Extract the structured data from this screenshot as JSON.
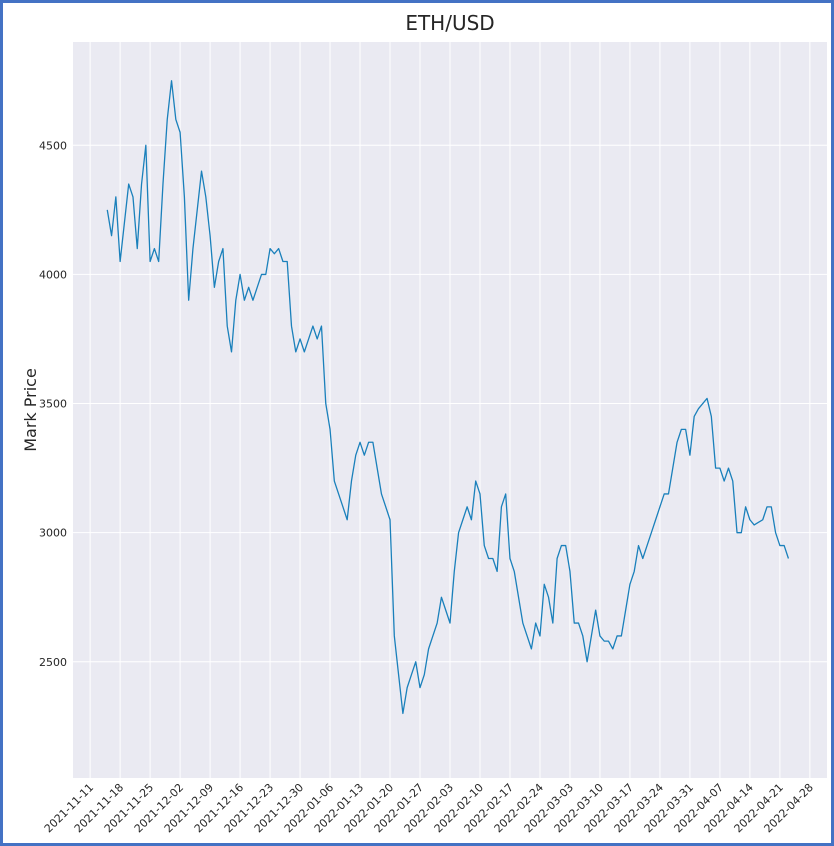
{
  "chart_data": {
    "type": "line",
    "title": "ETH/USD",
    "y_label": "Mark Price",
    "xlim": [
      "2021-11-07",
      "2022-05-02"
    ],
    "ylim": [
      2050,
      4900
    ],
    "xticks": [
      "2021-11-11",
      "2021-11-18",
      "2021-11-25",
      "2021-12-02",
      "2021-12-09",
      "2021-12-16",
      "2021-12-23",
      "2021-12-30",
      "2022-01-06",
      "2022-01-13",
      "2022-01-20",
      "2022-01-27",
      "2022-02-03",
      "2022-02-10",
      "2022-02-17",
      "2022-02-24",
      "2022-03-03",
      "2022-03-10",
      "2022-03-17",
      "2022-03-24",
      "2022-03-31",
      "2022-04-07",
      "2022-04-14",
      "2022-04-21",
      "2022-04-28"
    ],
    "yticks": [
      2500,
      3000,
      3500,
      4000,
      4500
    ],
    "grid": true,
    "x": [
      "2021-11-15",
      "2021-11-16",
      "2021-11-17",
      "2021-11-18",
      "2021-11-19",
      "2021-11-20",
      "2021-11-21",
      "2021-11-22",
      "2021-11-23",
      "2021-11-24",
      "2021-11-25",
      "2021-11-26",
      "2021-11-27",
      "2021-11-28",
      "2021-11-29",
      "2021-11-30",
      "2021-12-01",
      "2021-12-02",
      "2021-12-03",
      "2021-12-04",
      "2021-12-05",
      "2021-12-06",
      "2021-12-07",
      "2021-12-08",
      "2021-12-09",
      "2021-12-10",
      "2021-12-11",
      "2021-12-12",
      "2021-12-13",
      "2021-12-14",
      "2021-12-15",
      "2021-12-16",
      "2021-12-17",
      "2021-12-18",
      "2021-12-19",
      "2021-12-20",
      "2021-12-21",
      "2021-12-22",
      "2021-12-23",
      "2021-12-24",
      "2021-12-25",
      "2021-12-26",
      "2021-12-27",
      "2021-12-28",
      "2021-12-29",
      "2021-12-30",
      "2021-12-31",
      "2022-01-01",
      "2022-01-02",
      "2022-01-03",
      "2022-01-04",
      "2022-01-05",
      "2022-01-06",
      "2022-01-07",
      "2022-01-08",
      "2022-01-09",
      "2022-01-10",
      "2022-01-11",
      "2022-01-12",
      "2022-01-13",
      "2022-01-14",
      "2022-01-15",
      "2022-01-16",
      "2022-01-17",
      "2022-01-18",
      "2022-01-19",
      "2022-01-20",
      "2022-01-21",
      "2022-01-22",
      "2022-01-23",
      "2022-01-24",
      "2022-01-25",
      "2022-01-26",
      "2022-01-27",
      "2022-01-28",
      "2022-01-29",
      "2022-01-30",
      "2022-01-31",
      "2022-02-01",
      "2022-02-02",
      "2022-02-03",
      "2022-02-04",
      "2022-02-05",
      "2022-02-06",
      "2022-02-07",
      "2022-02-08",
      "2022-02-09",
      "2022-02-10",
      "2022-02-11",
      "2022-02-12",
      "2022-02-13",
      "2022-02-14",
      "2022-02-15",
      "2022-02-16",
      "2022-02-17",
      "2022-02-18",
      "2022-02-19",
      "2022-02-20",
      "2022-02-21",
      "2022-02-22",
      "2022-02-23",
      "2022-02-24",
      "2022-02-25",
      "2022-02-26",
      "2022-02-27",
      "2022-02-28",
      "2022-03-01",
      "2022-03-02",
      "2022-03-03",
      "2022-03-04",
      "2022-03-05",
      "2022-03-06",
      "2022-03-07",
      "2022-03-08",
      "2022-03-09",
      "2022-03-10",
      "2022-03-11",
      "2022-03-12",
      "2022-03-13",
      "2022-03-14",
      "2022-03-15",
      "2022-03-16",
      "2022-03-17",
      "2022-03-18",
      "2022-03-19",
      "2022-03-20",
      "2022-03-21",
      "2022-03-22",
      "2022-03-23",
      "2022-03-24",
      "2022-03-25",
      "2022-03-26",
      "2022-03-27",
      "2022-03-28",
      "2022-03-29",
      "2022-03-30",
      "2022-03-31",
      "2022-04-01",
      "2022-04-02",
      "2022-04-03",
      "2022-04-04",
      "2022-04-05",
      "2022-04-06",
      "2022-04-07",
      "2022-04-08",
      "2022-04-09",
      "2022-04-10",
      "2022-04-11",
      "2022-04-12",
      "2022-04-13",
      "2022-04-14",
      "2022-04-15",
      "2022-04-16",
      "2022-04-17",
      "2022-04-18",
      "2022-04-19",
      "2022-04-20",
      "2022-04-21",
      "2022-04-22",
      "2022-04-23"
    ],
    "series": [
      {
        "color": "#1a80bb",
        "values": [
          4250,
          4150,
          4300,
          4050,
          4200,
          4350,
          4300,
          4100,
          4350,
          4500,
          4050,
          4100,
          4050,
          4350,
          4600,
          4750,
          4600,
          4550,
          4300,
          3900,
          4100,
          4250,
          4400,
          4300,
          4150,
          3950,
          4050,
          4100,
          3800,
          3700,
          3900,
          4000,
          3900,
          3950,
          3900,
          3950,
          4000,
          4000,
          4100,
          4080,
          4100,
          4050,
          4050,
          3800,
          3700,
          3750,
          3700,
          3750,
          3800,
          3750,
          3800,
          3500,
          3400,
          3200,
          3150,
          3100,
          3050,
          3200,
          3300,
          3350,
          3300,
          3350,
          3350,
          3250,
          3150,
          3100,
          3050,
          2600,
          2450,
          2300,
          2400,
          2450,
          2500,
          2400,
          2450,
          2550,
          2600,
          2650,
          2750,
          2700,
          2650,
          2850,
          3000,
          3050,
          3100,
          3050,
          3200,
          3150,
          2950,
          2900,
          2900,
          2850,
          3100,
          3150,
          2900,
          2850,
          2750,
          2650,
          2600,
          2550,
          2650,
          2600,
          2800,
          2750,
          2650,
          2900,
          2950,
          2950,
          2850,
          2650,
          2650,
          2600,
          2500,
          2600,
          2700,
          2600,
          2580,
          2580,
          2550,
          2600,
          2600,
          2700,
          2800,
          2850,
          2950,
          2900,
          2950,
          3000,
          3050,
          3100,
          3150,
          3150,
          3250,
          3350,
          3400,
          3400,
          3300,
          3450,
          3480,
          3500,
          3520,
          3450,
          3250,
          3250,
          3200,
          3250,
          3200,
          3000,
          3000,
          3100,
          3050,
          3030,
          3040,
          3050,
          3100,
          3100,
          3000,
          2950,
          2950,
          2900
        ]
      }
    ]
  }
}
